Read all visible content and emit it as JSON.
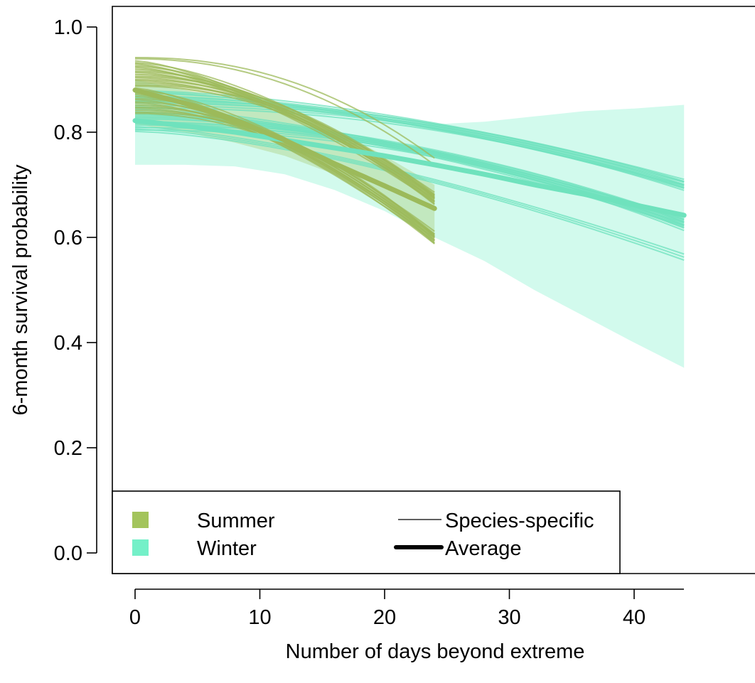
{
  "chart_data": {
    "type": "line",
    "title": "",
    "xlabel": "Number of days beyond extreme",
    "ylabel": "6-month survival probability",
    "xlim": [
      -1.7,
      45
    ],
    "ylim": [
      -0.04,
      1.04
    ],
    "xticks": [
      0,
      10,
      20,
      30,
      40
    ],
    "yticks": [
      0.0,
      0.2,
      0.4,
      0.6,
      0.8,
      1.0
    ],
    "xtick_labels": [
      "0",
      "10",
      "20",
      "30",
      "40"
    ],
    "ytick_labels": [
      "0.0",
      "0.2",
      "0.4",
      "0.6",
      "0.8",
      "1.0"
    ],
    "grid": false,
    "legend": {
      "placement": "bottom-left",
      "items": [
        {
          "label": "Summer",
          "kind": "swatch",
          "color": "#a3c45c"
        },
        {
          "label": "Winter",
          "kind": "swatch",
          "color": "#74f0c8"
        },
        {
          "label": "Species-specific",
          "kind": "line-thin",
          "color": "#000000"
        },
        {
          "label": "Average",
          "kind": "line-thick",
          "color": "#000000"
        }
      ]
    },
    "series": [
      {
        "name": "Summer",
        "color": "#9cba5a",
        "band_color": "#a3c45c",
        "x_range": [
          0,
          24
        ],
        "average": {
          "x": [
            0,
            4,
            8,
            12,
            16,
            20,
            24
          ],
          "y": [
            0.88,
            0.855,
            0.823,
            0.785,
            0.74,
            0.698,
            0.655
          ]
        },
        "band": {
          "x": [
            0,
            4,
            8,
            12,
            16,
            20,
            24
          ],
          "lower": [
            0.815,
            0.8,
            0.78,
            0.755,
            0.72,
            0.67,
            0.605
          ],
          "upper": [
            0.935,
            0.915,
            0.885,
            0.85,
            0.805,
            0.755,
            0.7
          ]
        },
        "species": {
          "count": 34,
          "start_range": [
            0.835,
            0.945
          ],
          "end_range": [
            0.535,
            0.755
          ]
        }
      },
      {
        "name": "Winter",
        "color": "#6fe2bd",
        "band_color": "#74f0c8",
        "x_range": [
          0,
          44
        ],
        "average": {
          "x": [
            0,
            4,
            8,
            12,
            16,
            20,
            24,
            28,
            32,
            36,
            40,
            44
          ],
          "y": [
            0.822,
            0.812,
            0.8,
            0.785,
            0.77,
            0.755,
            0.738,
            0.72,
            0.7,
            0.682,
            0.662,
            0.642
          ]
        },
        "band": {
          "x": [
            0,
            4,
            8,
            12,
            16,
            20,
            24,
            28,
            32,
            36,
            40,
            44
          ],
          "lower": [
            0.738,
            0.738,
            0.735,
            0.72,
            0.69,
            0.65,
            0.6,
            0.555,
            0.5,
            0.45,
            0.4,
            0.352
          ]
        },
        "band_upper": [
          0.9,
          0.88,
          0.86,
          0.845,
          0.83,
          0.82,
          0.815,
          0.82,
          0.83,
          0.84,
          0.845,
          0.852
        ],
        "species": {
          "count": 30,
          "start_range": [
            0.8,
            0.88
          ],
          "end_range": [
            0.545,
            0.755
          ]
        }
      }
    ]
  }
}
